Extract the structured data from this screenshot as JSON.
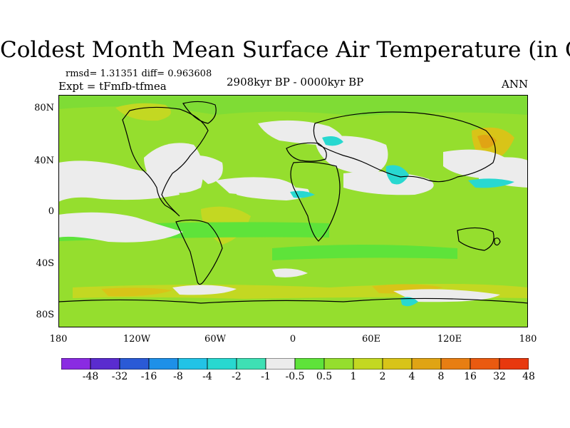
{
  "title": "Coldest Month Mean Surface Air Temperature (in C)",
  "stats": "rmsd= 1.31351 diff= 0.963608",
  "experiment": "Expt = tFmfb-tfmea",
  "period": "2908kyr BP - 0000kyr BP",
  "season": "ANN",
  "map": {
    "lat_ticks": [
      "80N",
      "40N",
      "0",
      "40S",
      "80S"
    ],
    "lon_ticks": [
      "180",
      "120W",
      "60W",
      "0",
      "60E",
      "120E",
      "180"
    ]
  },
  "colorbar": {
    "colors": [
      "#8a2be2",
      "#5a2ccf",
      "#2a5ad6",
      "#1e90e8",
      "#22c3e6",
      "#28d8d0",
      "#3ee0b4",
      "#ececec",
      "#5ee33a",
      "#95de2e",
      "#c3d822",
      "#d8c418",
      "#e0a414",
      "#e87e12",
      "#ea5a10",
      "#e8380e"
    ],
    "labels": [
      "-48",
      "-32",
      "-16",
      "-8",
      "-4",
      "-2",
      "-1",
      "-0.5",
      "0.5",
      "1",
      "2",
      "4",
      "8",
      "16",
      "32",
      "48"
    ]
  }
}
